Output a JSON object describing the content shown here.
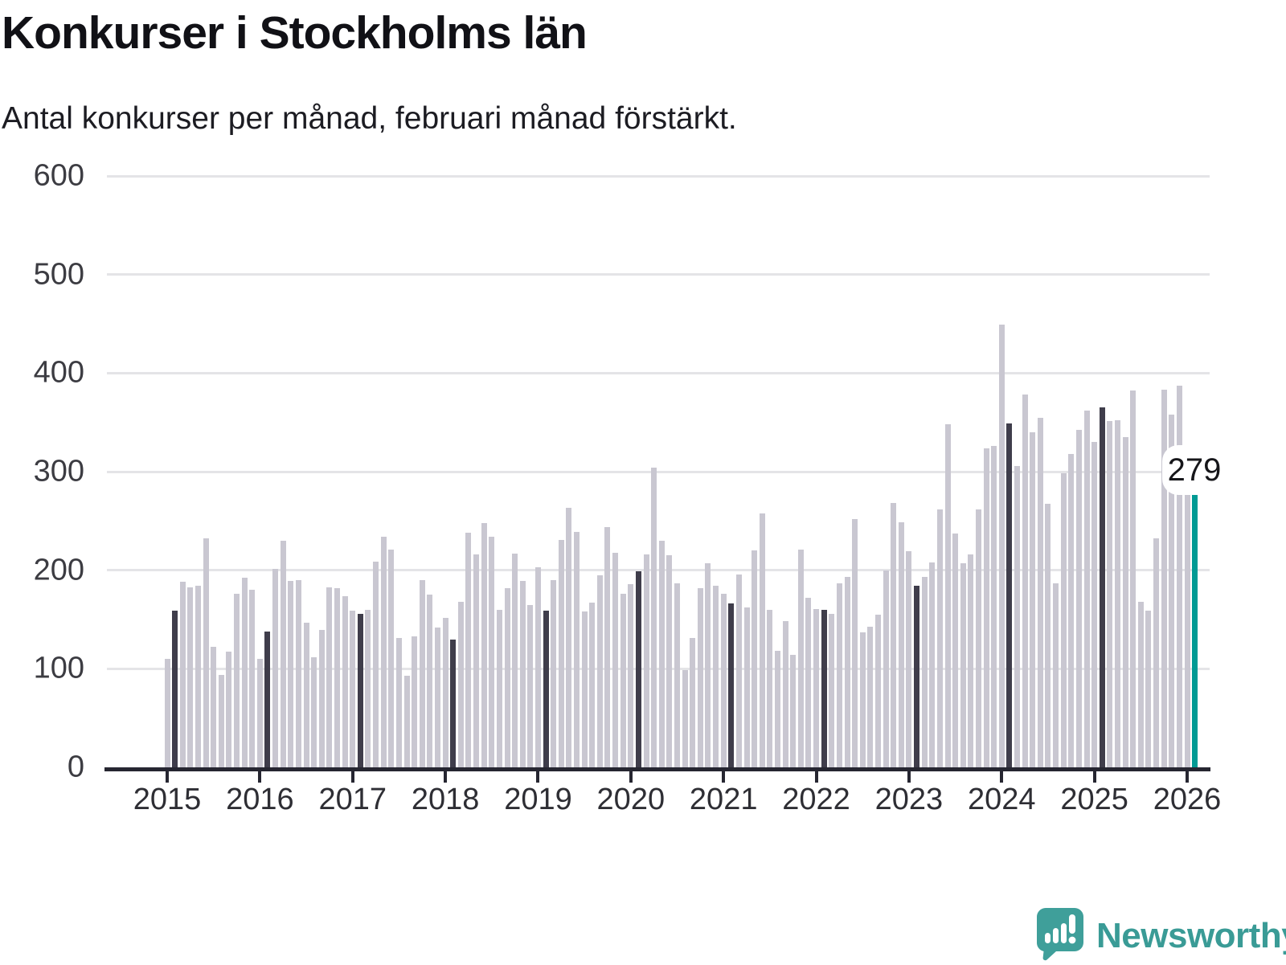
{
  "header": {
    "title": "Konkurser i Stockholms län",
    "subtitle": "Antal konkurser per månad, februari månad förstärkt."
  },
  "annotation": {
    "label": "279"
  },
  "brand": {
    "wordmark": "Newsworthy"
  },
  "colors": {
    "bar_default": "#c9c7d1",
    "bar_february": "#3f3d4b",
    "bar_highlight": "#009a94",
    "axis": "#262631",
    "grid": "#e4e4e7",
    "logo_teal": "#3f9f9a"
  },
  "chart_data": {
    "type": "bar",
    "title": "Konkurser i Stockholms län",
    "subtitle": "Antal konkurser per månad, februari månad förstärkt.",
    "ylabel": "",
    "xlabel": "",
    "ylim": [
      0,
      600
    ],
    "y_ticks": [
      0,
      100,
      200,
      300,
      400,
      500,
      600
    ],
    "x_tick_labels": [
      "2015",
      "2016",
      "2017",
      "2018",
      "2019",
      "2020",
      "2021",
      "2022",
      "2023",
      "2024",
      "2025",
      "2026"
    ],
    "grid": "horizontal",
    "emphasized_month_index": 1,
    "highlight": {
      "month": "2026-02",
      "value": 279,
      "label": "279"
    },
    "series": [
      {
        "year": 2015,
        "values": [
          110,
          159,
          188,
          183,
          184,
          232,
          122,
          94,
          117,
          176,
          192,
          180
        ]
      },
      {
        "year": 2016,
        "values": [
          110,
          138,
          201,
          230,
          189,
          190,
          147,
          112,
          139,
          183,
          182,
          174
        ]
      },
      {
        "year": 2017,
        "values": [
          159,
          156,
          160,
          209,
          234,
          221,
          131,
          93,
          133,
          190,
          175,
          142
        ]
      },
      {
        "year": 2018,
        "values": [
          152,
          130,
          168,
          238,
          216,
          248,
          234,
          160,
          182,
          217,
          189,
          165
        ]
      },
      {
        "year": 2019,
        "values": [
          203,
          159,
          190,
          231,
          263,
          239,
          158,
          167,
          195,
          244,
          218,
          176
        ]
      },
      {
        "year": 2020,
        "values": [
          186,
          199,
          216,
          304,
          230,
          215,
          187,
          99,
          131,
          182,
          207,
          184
        ]
      },
      {
        "year": 2021,
        "values": [
          176,
          166,
          196,
          162,
          220,
          258,
          160,
          118,
          148,
          114,
          221,
          172
        ]
      },
      {
        "year": 2022,
        "values": [
          161,
          160,
          156,
          187,
          193,
          252,
          137,
          143,
          155,
          200,
          268,
          249
        ]
      },
      {
        "year": 2023,
        "values": [
          219,
          184,
          193,
          208,
          262,
          348,
          237,
          207,
          216,
          262,
          324,
          326
        ]
      },
      {
        "year": 2024,
        "values": [
          449,
          349,
          306,
          378,
          340,
          355,
          267,
          187,
          298,
          318,
          342,
          362
        ]
      },
      {
        "year": 2025,
        "values": [
          330,
          365,
          351,
          352,
          335,
          382,
          168,
          159,
          232,
          383,
          358,
          387
        ]
      },
      {
        "year": 2026,
        "values": [
          283,
          279
        ]
      }
    ]
  }
}
